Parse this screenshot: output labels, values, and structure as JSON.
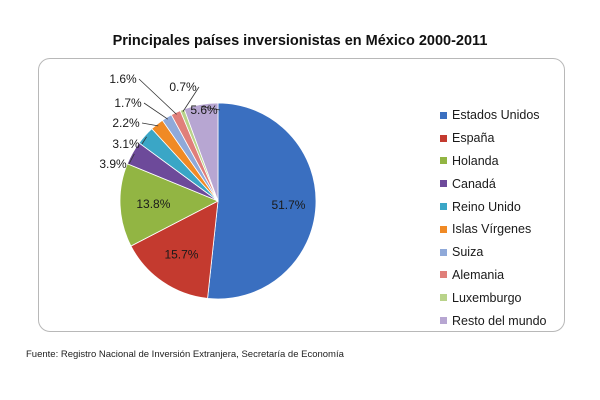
{
  "chart_data": {
    "type": "pie",
    "title": "Principales países inversionistas en México 2000-2011",
    "slices": [
      {
        "name": "Estados Unidos",
        "value": 51.7,
        "label": "51.7%",
        "color": "#3a6fc0"
      },
      {
        "name": "España",
        "value": 15.7,
        "label": "15.7%",
        "color": "#c43a2f"
      },
      {
        "name": "Holanda",
        "value": 13.8,
        "label": "13.8%",
        "color": "#92b543"
      },
      {
        "name": "Canadá",
        "value": 3.9,
        "label": "3.9%",
        "color": "#6d4a9a"
      },
      {
        "name": "Reino Unido",
        "value": 3.1,
        "label": "3.1%",
        "color": "#3aa6c6"
      },
      {
        "name": "Islas Vírgenes",
        "value": 2.2,
        "label": "2.2%",
        "color": "#f08a25"
      },
      {
        "name": "Suiza",
        "value": 1.7,
        "label": "1.7%",
        "color": "#8fa9d9"
      },
      {
        "name": "Alemania",
        "value": 1.6,
        "label": "1.6%",
        "color": "#e07f7a"
      },
      {
        "name": "Luxemburgo",
        "value": 0.7,
        "label": "0.7%",
        "color": "#b9d38a"
      },
      {
        "name": "Resto del mundo",
        "value": 5.6,
        "label": "5.6%",
        "color": "#b7a6d2"
      }
    ],
    "legend_position": "right",
    "source": "Fuente: Registro Nacional de Inversión Extranjera, Secretaría de Economía"
  }
}
